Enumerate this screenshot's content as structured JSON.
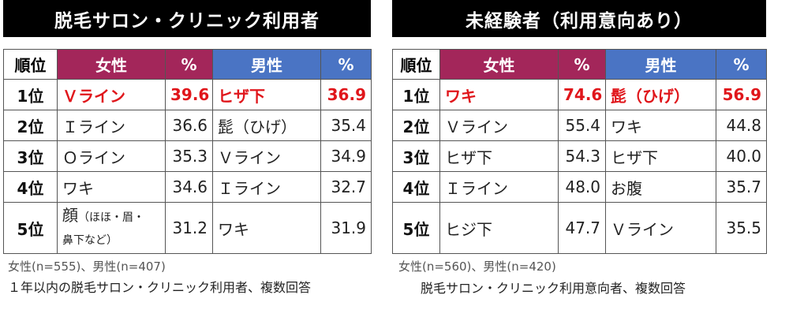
{
  "colors": {
    "female_header": "#a3265a",
    "male_header": "#4a74c4",
    "highlight": "#e0161b",
    "title_bg": "#000000"
  },
  "headers": {
    "rank": "順位",
    "female": "女性",
    "pct": "%",
    "male": "男性"
  },
  "left": {
    "title": "脱毛サロン・クリニック利用者",
    "rows": [
      {
        "rank": "1位",
        "female": "Ｖライン",
        "female_pct": "39.6",
        "male": "ヒザ下",
        "male_pct": "36.9"
      },
      {
        "rank": "2位",
        "female": "Ｉライン",
        "female_pct": "36.6",
        "male": "髭（ひげ）",
        "male_pct": "35.4"
      },
      {
        "rank": "3位",
        "female": "Ｏライン",
        "female_pct": "35.3",
        "male": "Ｖライン",
        "male_pct": "34.9"
      },
      {
        "rank": "4位",
        "female": "ワキ",
        "female_pct": "34.6",
        "male": "Ｉライン",
        "male_pct": "32.7"
      },
      {
        "rank": "5位",
        "female": "顔",
        "female_sub": "（ほほ・眉・",
        "female_sub2": "鼻下など）",
        "female_pct": "31.2",
        "male": "ワキ",
        "male_pct": "31.9"
      }
    ],
    "note1": "女性(n=555)、男性(n=407)",
    "note2": "１年以内の脱毛サロン・クリニック利用者、複数回答"
  },
  "right": {
    "title": "未経験者（利用意向あり）",
    "rows": [
      {
        "rank": "1位",
        "female": "ワキ",
        "female_pct": "74.6",
        "male": "髭（ひげ）",
        "male_pct": "56.9"
      },
      {
        "rank": "2位",
        "female": "Ｖライン",
        "female_pct": "55.4",
        "male": "ワキ",
        "male_pct": "44.8"
      },
      {
        "rank": "3位",
        "female": "ヒザ下",
        "female_pct": "54.3",
        "male": "ヒザ下",
        "male_pct": "40.0"
      },
      {
        "rank": "4位",
        "female": "Ｉライン",
        "female_pct": "48.0",
        "male": "お腹",
        "male_pct": "35.7"
      },
      {
        "rank": "5位",
        "female": "ヒジ下",
        "female_pct": "47.7",
        "male": "Ｖライン",
        "male_pct": "35.5"
      }
    ],
    "note1": "女性(n=560)、男性(n=420)",
    "note2": "脱毛サロン・クリニック利用意向者、複数回答"
  }
}
